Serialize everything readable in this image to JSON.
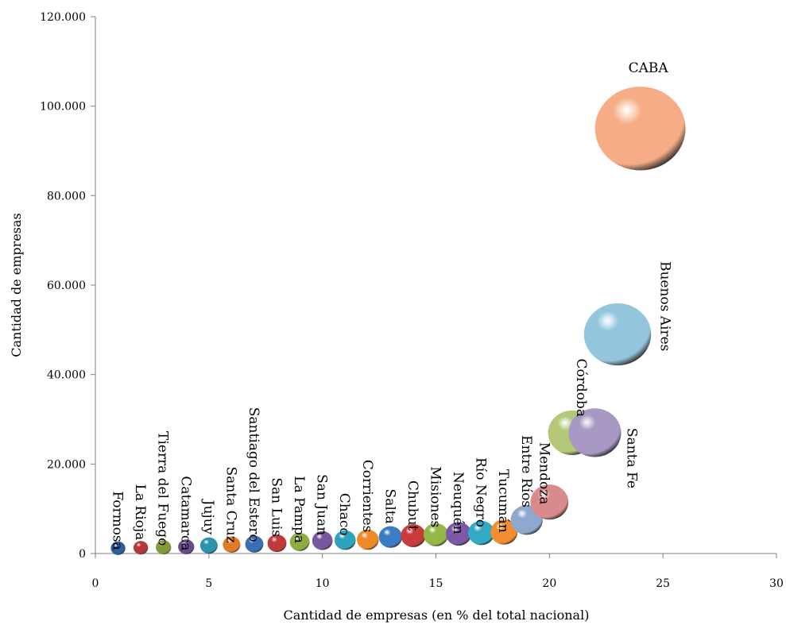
{
  "chart_data": {
    "type": "bubble",
    "xlabel": "Cantidad de empresas (en % del total nacional)",
    "ylabel": "Cantidad de empresas",
    "xlim": [
      0,
      30
    ],
    "ylim": [
      0,
      120000
    ],
    "x_ticks": [
      0,
      5,
      10,
      15,
      20,
      25,
      30
    ],
    "x_tick_labels": [
      "0",
      "5",
      "10",
      "15",
      "20",
      "25",
      "30"
    ],
    "y_ticks": [
      0,
      20000,
      40000,
      60000,
      80000,
      100000,
      120000
    ],
    "y_tick_labels": [
      "0",
      "20.000",
      "40.000",
      "60.000",
      "80.000",
      "100.000",
      "120.000"
    ],
    "grid": false,
    "points": [
      {
        "label": "Formosa",
        "x": 1,
        "y": 1200,
        "size": 1.0,
        "color": "#2f5e9e"
      },
      {
        "label": "La Rioja",
        "x": 2,
        "y": 1300,
        "size": 1.0,
        "color": "#b23a3a"
      },
      {
        "label": "Tierra del Fuego",
        "x": 3,
        "y": 1400,
        "size": 1.05,
        "color": "#7f9a3a"
      },
      {
        "label": "Catamarca",
        "x": 4,
        "y": 1500,
        "size": 1.1,
        "color": "#6a4a8c"
      },
      {
        "label": "Jujuy",
        "x": 5,
        "y": 1800,
        "size": 1.2,
        "color": "#2b93ad"
      },
      {
        "label": "Santa Cruz",
        "x": 6,
        "y": 2000,
        "size": 1.2,
        "color": "#e07b28"
      },
      {
        "label": "Santiago del Estero",
        "x": 7,
        "y": 2100,
        "size": 1.25,
        "color": "#3a6fb4"
      },
      {
        "label": "San Luis",
        "x": 8,
        "y": 2300,
        "size": 1.3,
        "color": "#c03a3a"
      },
      {
        "label": "La Pampa",
        "x": 9,
        "y": 2600,
        "size": 1.35,
        "color": "#8fad3e"
      },
      {
        "label": "San Juan",
        "x": 10,
        "y": 2900,
        "size": 1.4,
        "color": "#7a55a0"
      },
      {
        "label": "Chaco",
        "x": 11,
        "y": 3000,
        "size": 1.45,
        "color": "#2ea3bd"
      },
      {
        "label": "Corrientes",
        "x": 12,
        "y": 3100,
        "size": 1.5,
        "color": "#ef8a2b"
      },
      {
        "label": "Salta",
        "x": 13,
        "y": 3700,
        "size": 1.6,
        "color": "#3b7cc4"
      },
      {
        "label": "Chubut",
        "x": 14,
        "y": 4000,
        "size": 1.7,
        "color": "#c93c3c"
      },
      {
        "label": "Misiones",
        "x": 15,
        "y": 4200,
        "size": 1.7,
        "color": "#94b845"
      },
      {
        "label": "Neuquén",
        "x": 16,
        "y": 4400,
        "size": 1.75,
        "color": "#7d58a6"
      },
      {
        "label": "Río Negro",
        "x": 17,
        "y": 4600,
        "size": 1.8,
        "color": "#31aac3"
      },
      {
        "label": "Tucumán",
        "x": 18,
        "y": 4800,
        "size": 1.85,
        "color": "#f28e2f"
      },
      {
        "label": "Entre Ríos",
        "x": 19,
        "y": 7500,
        "size": 2.2,
        "color": "#8fa8d0"
      },
      {
        "label": "Mendoza",
        "x": 20,
        "y": 11500,
        "size": 2.6,
        "color": "#d98a8c"
      },
      {
        "label": "Córdoba",
        "x": 21,
        "y": 27000,
        "size": 3.3,
        "color": "#b4c87a"
      },
      {
        "label": "Santa Fe",
        "x": 22,
        "y": 27000,
        "size": 3.6,
        "color": "#a898c4"
      },
      {
        "label": "Buenos Aires",
        "x": 23,
        "y": 49000,
        "size": 4.6,
        "color": "#93c6dc"
      },
      {
        "label": "CABA",
        "x": 24,
        "y": 95000,
        "size": 6.2,
        "color": "#f6ad85"
      }
    ]
  }
}
